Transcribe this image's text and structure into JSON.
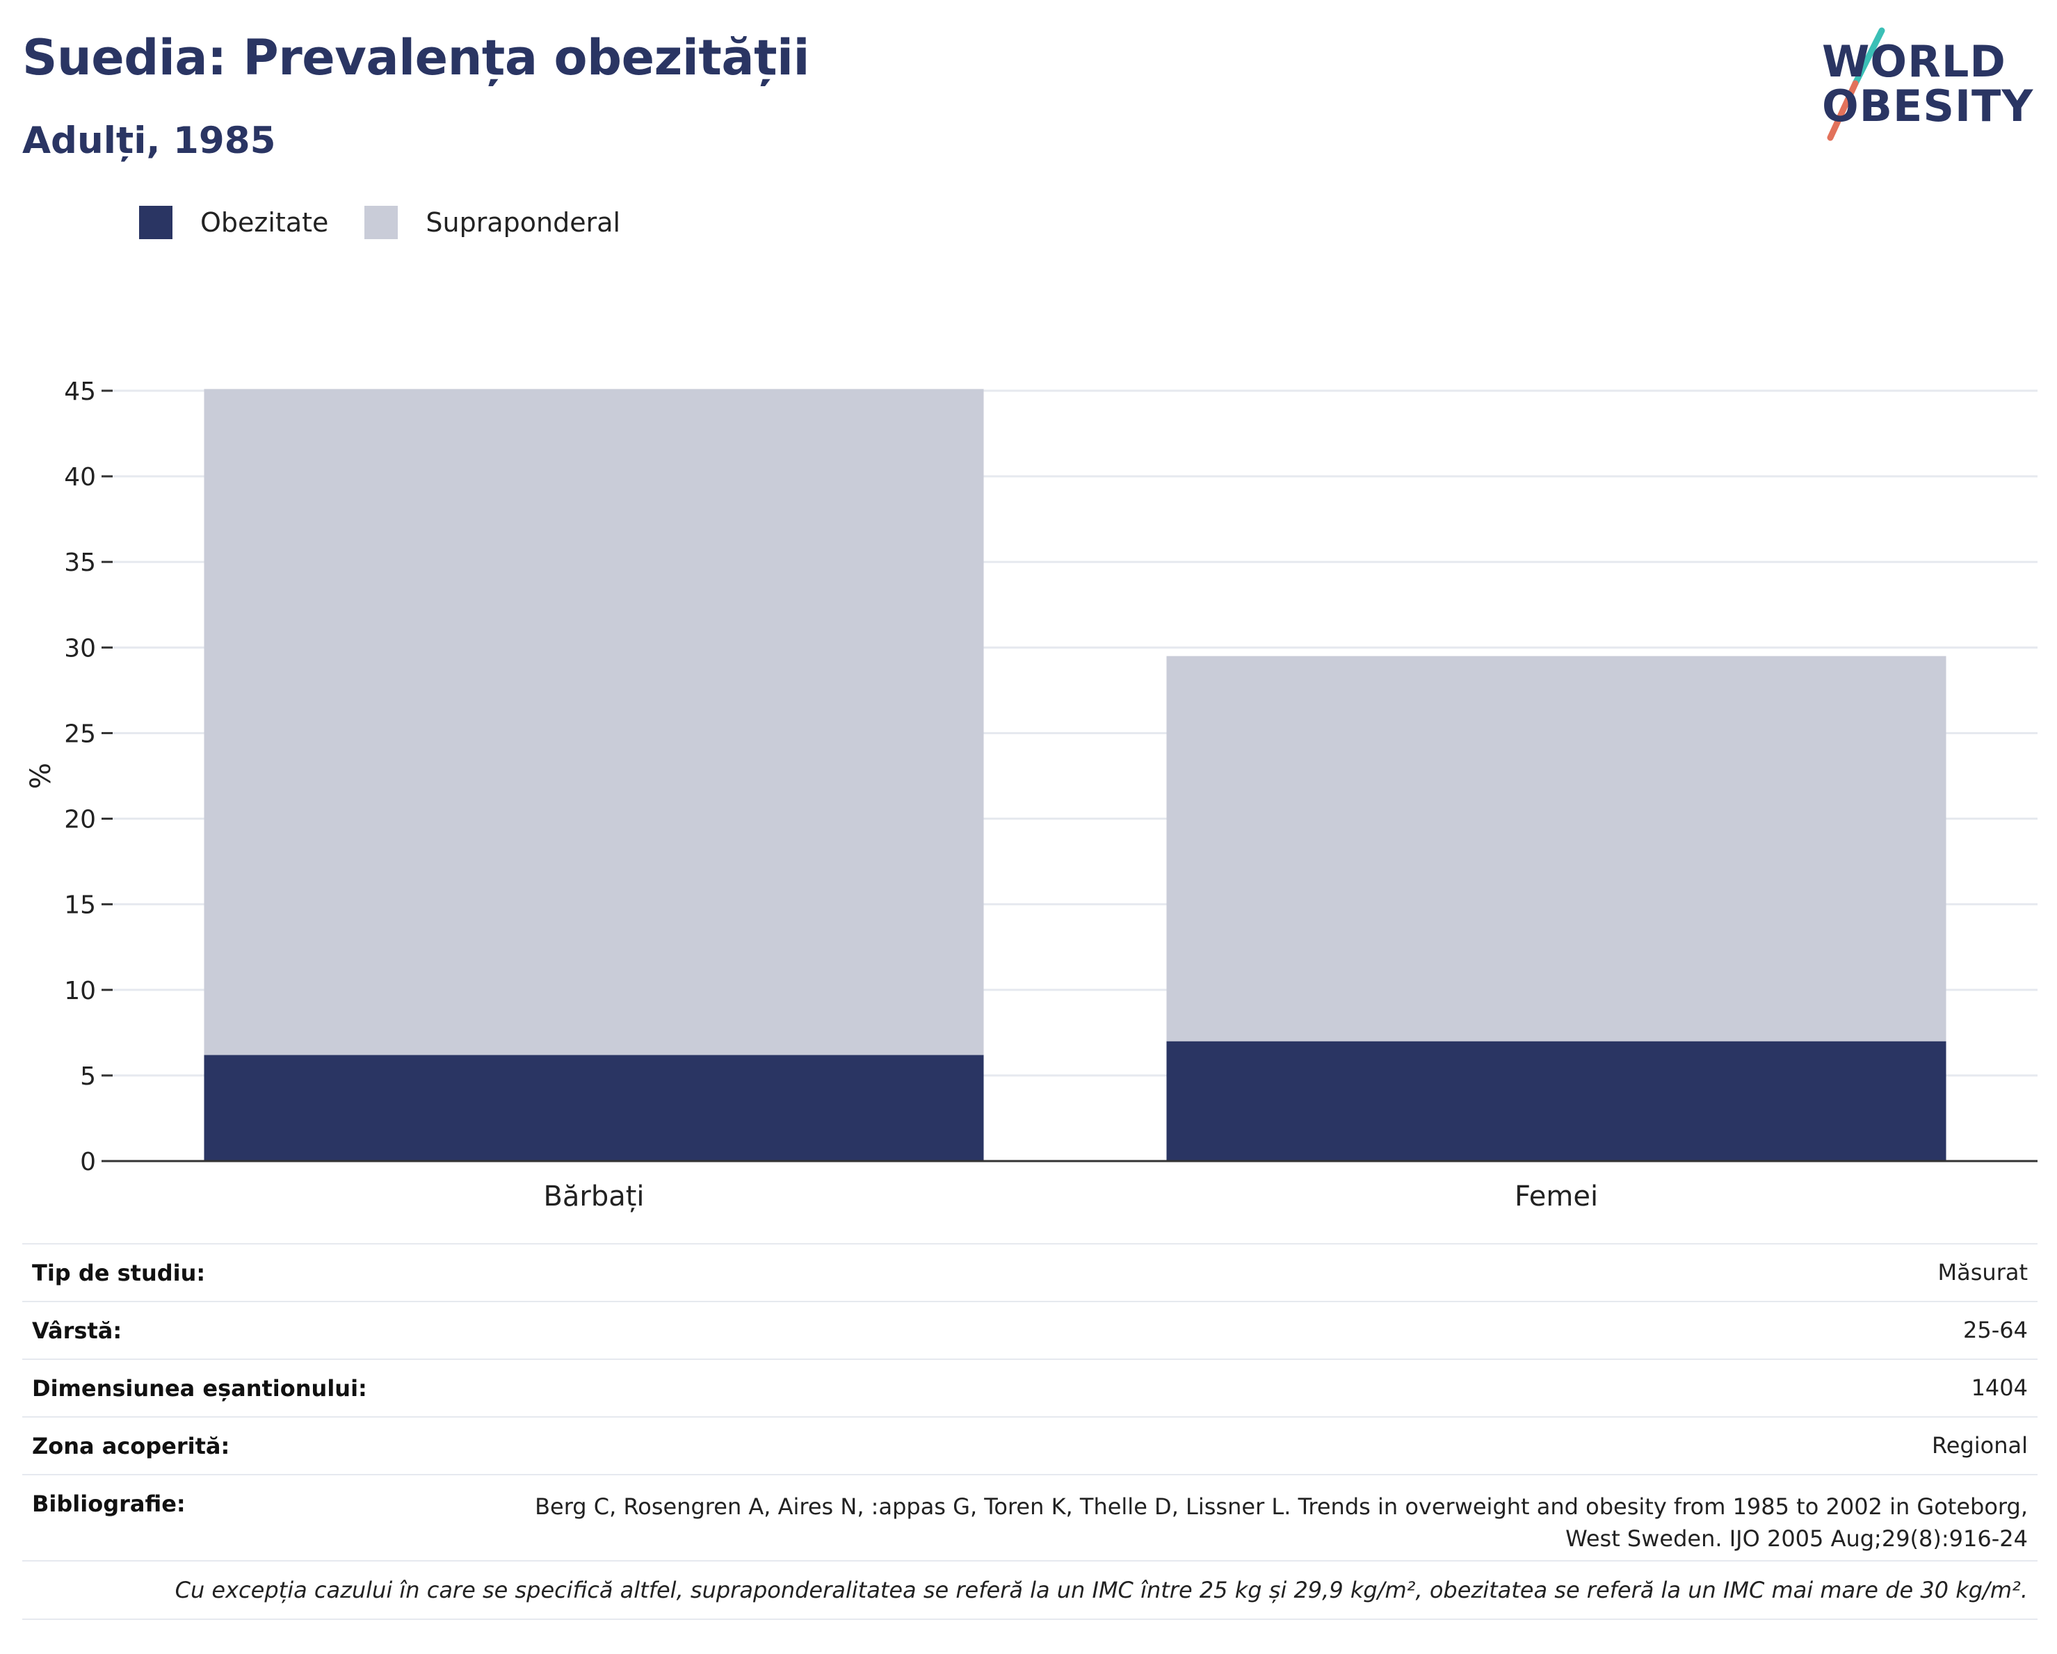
{
  "header": {
    "title": "Suedia: Prevalența obezității",
    "subtitle": "Adulți, 1985"
  },
  "logo": {
    "line1": "WORLD",
    "line2": "OBESITY"
  },
  "colors": {
    "obesity": "#2a3563",
    "overweight": "#c9ccd8",
    "text": "#222222",
    "grid": "#e6e9ef",
    "logo_teal": "#3bbfb6",
    "logo_coral": "#e2725b"
  },
  "chart_data": {
    "type": "bar",
    "stacked": true,
    "categories": [
      "Bărbați",
      "Femei"
    ],
    "series": [
      {
        "name": "Obezitate",
        "values": [
          6.2,
          7.0
        ],
        "color": "#2a3563"
      },
      {
        "name": "Supraponderal",
        "values": [
          38.9,
          22.5
        ],
        "color": "#c9ccd8"
      }
    ],
    "ylabel": "%",
    "ylim": [
      0,
      45
    ],
    "yticks": [
      0,
      5,
      10,
      15,
      20,
      25,
      30,
      35,
      40,
      45
    ],
    "grid": true,
    "legend": "top-left"
  },
  "meta": {
    "rows": [
      {
        "key": "Tip de studiu:",
        "value": "Măsurat"
      },
      {
        "key": "Vârstă:",
        "value": "25-64"
      },
      {
        "key": "Dimensiunea eșantionului:",
        "value": "1404"
      },
      {
        "key": "Zona acoperită:",
        "value": "Regional"
      }
    ],
    "bibliography": {
      "key": "Bibliografie:",
      "line1": "Berg C, Rosengren A, Aires N, :appas G, Toren K, Thelle D, Lissner L. Trends in overweight and obesity from 1985 to 2002 in Goteborg,",
      "line2": "West Sweden. IJO 2005 Aug;29(8):916-24"
    },
    "note": "Cu excepția cazului în care se specifică altfel, supraponderalitatea se referă la un IMC între 25 kg și 29,9 kg/m², obezitatea se referă la un IMC mai mare de 30 kg/m²."
  }
}
